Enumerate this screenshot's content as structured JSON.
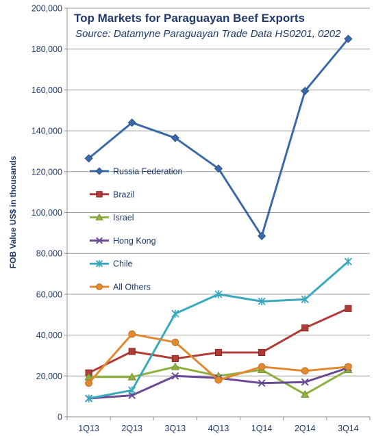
{
  "chart_data": {
    "type": "line",
    "title": "Top Markets for Paraguayan Beef Exports",
    "subtitle": "Source: Datamyne Paraguayan Trade Data HS0201, 0202",
    "ylabel": "FOB Value US$ in thousands",
    "xlabel": "",
    "ylim": [
      0,
      200000
    ],
    "yticks": [
      0,
      20000,
      40000,
      60000,
      80000,
      100000,
      120000,
      140000,
      160000,
      180000,
      200000
    ],
    "ytick_labels": [
      "0",
      "20,000",
      "40,000",
      "60,000",
      "80,000",
      "100,000",
      "120,000",
      "140,000",
      "160,000",
      "180,000",
      "200,000"
    ],
    "categories": [
      "1Q13",
      "2Q13",
      "3Q13",
      "4Q13",
      "1Q14",
      "2Q14",
      "3Q14"
    ],
    "grid": true,
    "legend_position": "left-middle",
    "series": [
      {
        "name": "Russia Federation",
        "color": "#3a69a8",
        "marker": "diamond",
        "values": [
          126500,
          144000,
          136500,
          121500,
          88500,
          159500,
          185000
        ]
      },
      {
        "name": "Brazil",
        "color": "#b03a35",
        "marker": "square",
        "values": [
          21500,
          32000,
          28500,
          31500,
          31500,
          43500,
          53000
        ]
      },
      {
        "name": "Israel",
        "color": "#8db03e",
        "marker": "triangle",
        "values": [
          19500,
          19500,
          24500,
          20000,
          23000,
          11000,
          23000
        ]
      },
      {
        "name": "Hong Kong",
        "color": "#6a4a94",
        "marker": "x",
        "values": [
          9000,
          10500,
          20000,
          19000,
          16500,
          17000,
          24000
        ]
      },
      {
        "name": "Chile",
        "color": "#3aa8bd",
        "marker": "asterisk",
        "values": [
          9000,
          13000,
          50500,
          60000,
          56500,
          57500,
          76000
        ]
      },
      {
        "name": "All Others",
        "color": "#e0892e",
        "marker": "circle",
        "values": [
          16500,
          40500,
          36500,
          18000,
          24500,
          22500,
          24500
        ]
      }
    ]
  }
}
